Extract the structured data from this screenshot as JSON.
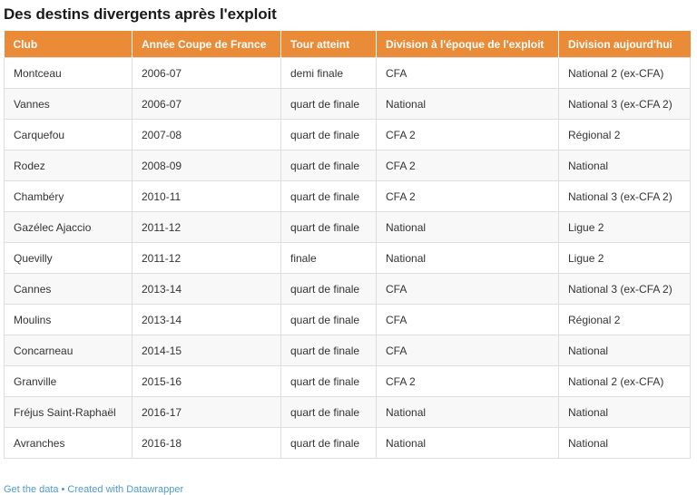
{
  "title": "Des destins divergents après l'exploit",
  "table": {
    "columns": [
      {
        "label": "Club"
      },
      {
        "label": "Année Coupe de France",
        "sort_icon": "▼"
      },
      {
        "label": "Tour atteint"
      },
      {
        "label": "Division à l'époque de l'exploit"
      },
      {
        "label": "Division aujourd'hui"
      }
    ],
    "rows": [
      [
        "Montceau",
        "2006-07",
        "demi finale",
        "CFA",
        "National 2 (ex-CFA)"
      ],
      [
        "Vannes",
        "2006-07",
        "quart de finale",
        "National",
        "National 3 (ex-CFA 2)"
      ],
      [
        "Carquefou",
        "2007-08",
        "quart de finale",
        "CFA 2",
        "Régional 2"
      ],
      [
        "Rodez",
        "2008-09",
        "quart de finale",
        "CFA 2",
        "National"
      ],
      [
        "Chambéry",
        "2010-11",
        "quart de finale",
        "CFA 2",
        "National 3 (ex-CFA 2)"
      ],
      [
        "Gazélec Ajaccio",
        "2011-12",
        "quart de finale",
        "National",
        "Ligue 2"
      ],
      [
        "Quevilly",
        "2011-12",
        "finale",
        "National",
        "Ligue 2"
      ],
      [
        "Cannes",
        "2013-14",
        "quart de finale",
        "CFA",
        "National 3 (ex-CFA 2)"
      ],
      [
        "Moulins",
        "2013-14",
        "quart de finale",
        "CFA",
        "Régional 2"
      ],
      [
        "Concarneau",
        "2014-15",
        "quart de finale",
        "CFA",
        "National"
      ],
      [
        "Granville",
        "2015-16",
        "quart de finale",
        "CFA 2",
        "National 2 (ex-CFA)"
      ],
      [
        "Fréjus Saint-Raphaël",
        "2016-17",
        "quart de finale",
        "National",
        "National"
      ],
      [
        "Avranches",
        "2016-18",
        "quart de finale",
        "National",
        "National"
      ]
    ]
  },
  "footer": {
    "get_data_label": "Get the data",
    "separator": "•",
    "credit_label": "Created with Datawrapper"
  },
  "colors": {
    "header_bg": "#EA8B38",
    "header_text": "#FFFFFF",
    "row_alt_bg": "#F8F8F8",
    "grid_border": "#DEDEDE",
    "body_text": "#333333",
    "title_text": "#1A1A1A",
    "link": "#4E9ACF"
  },
  "chart_data": {
    "type": "table",
    "title": "Des destins divergents après l'exploit",
    "columns": [
      "Club",
      "Année Coupe de France",
      "Tour atteint",
      "Division à l'époque de l'exploit",
      "Division aujourd'hui"
    ],
    "rows": [
      [
        "Montceau",
        "2006-07",
        "demi finale",
        "CFA",
        "National 2 (ex-CFA)"
      ],
      [
        "Vannes",
        "2006-07",
        "quart de finale",
        "National",
        "National 3 (ex-CFA 2)"
      ],
      [
        "Carquefou",
        "2007-08",
        "quart de finale",
        "CFA 2",
        "Régional 2"
      ],
      [
        "Rodez",
        "2008-09",
        "quart de finale",
        "CFA 2",
        "National"
      ],
      [
        "Chambéry",
        "2010-11",
        "quart de finale",
        "CFA 2",
        "National 3 (ex-CFA 2)"
      ],
      [
        "Gazélec Ajaccio",
        "2011-12",
        "quart de finale",
        "National",
        "Ligue 2"
      ],
      [
        "Quevilly",
        "2011-12",
        "finale",
        "National",
        "Ligue 2"
      ],
      [
        "Cannes",
        "2013-14",
        "quart de finale",
        "CFA",
        "National 3 (ex-CFA 2)"
      ],
      [
        "Moulins",
        "2013-14",
        "quart de finale",
        "CFA",
        "Régional 2"
      ],
      [
        "Concarneau",
        "2014-15",
        "quart de finale",
        "CFA",
        "National"
      ],
      [
        "Granville",
        "2015-16",
        "quart de finale",
        "CFA 2",
        "National 2 (ex-CFA)"
      ],
      [
        "Fréjus Saint-Raphaël",
        "2016-17",
        "quart de finale",
        "National",
        "National"
      ],
      [
        "Avranches",
        "2016-18",
        "quart de finale",
        "National",
        "National"
      ]
    ],
    "sort_column": "Année Coupe de France",
    "sort_indicator": "▼"
  }
}
